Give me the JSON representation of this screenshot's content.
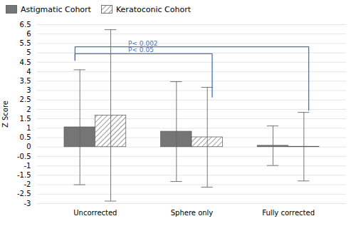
{
  "chart_data": {
    "type": "bar",
    "ylabel": "Z Score",
    "categories": [
      "Uncorrected",
      "Sphere only",
      "Fully corrected"
    ],
    "series": [
      {
        "name": "Astigmatic Cohort",
        "color": "#757575",
        "values": [
          1.05,
          0.82,
          0.07
        ],
        "errors": [
          3.05,
          2.65,
          1.05
        ]
      },
      {
        "name": "Keratoconic Cohort",
        "color": "#FFFFFF",
        "values": [
          1.68,
          0.52,
          0.02
        ],
        "errors": [
          4.55,
          2.65,
          1.82
        ]
      }
    ],
    "ylim": [
      -3,
      6.5
    ],
    "yticks": [
      -3,
      -2.5,
      -2,
      -1.5,
      -1,
      -0.5,
      0,
      0.5,
      1,
      1.5,
      2,
      2.5,
      3,
      3.5,
      4,
      4.5,
      5,
      5.5,
      6,
      6.5
    ],
    "grid": true,
    "legend": "upper left",
    "annotations": [
      {
        "text": "P< 0.002",
        "color": "#4472C4",
        "from": "Uncorrected",
        "to": "Fully corrected",
        "y": 5.32,
        "y_from": 4.6,
        "y_to": 1.95
      },
      {
        "text": "P< 0.05",
        "color": "#4472C4",
        "from": "Uncorrected",
        "to": "Sphere only",
        "y": 4.95,
        "y_from": 4.6,
        "y_to": 2.65
      }
    ]
  }
}
